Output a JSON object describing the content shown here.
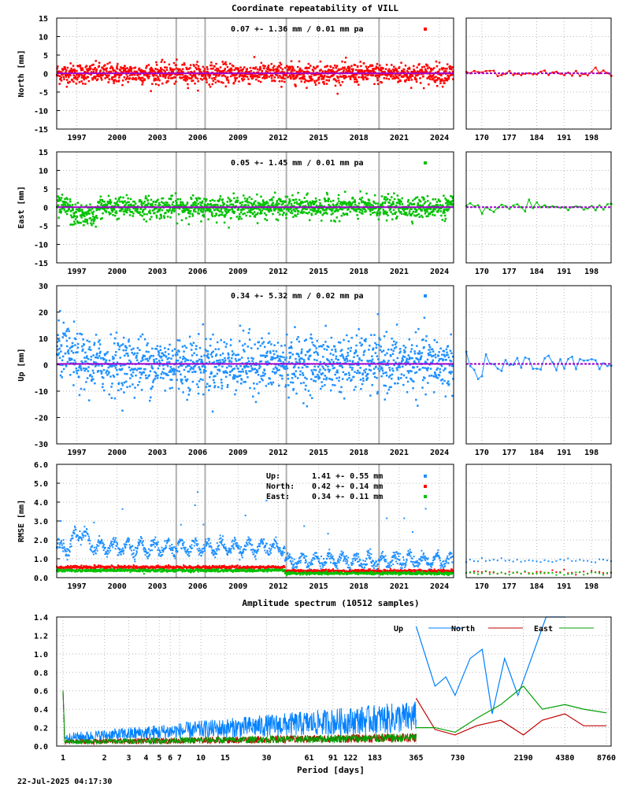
{
  "page": {
    "title": "Coordinate repeatability of VILL",
    "footer_timestamp": "22-Jul-2025 04:17:30"
  },
  "colors": {
    "north": "#ff0000",
    "east": "#00c000",
    "up": "#1e90ff",
    "fit_line": "#a000d0",
    "grid": "#b8b8b8",
    "offset_line": "#b0b0b0",
    "spectrum_up": "#0080ff",
    "spectrum_north": "#c00000",
    "spectrum_east": "#00a000"
  },
  "chart_data": [
    {
      "id": "north",
      "type": "scatter",
      "ylabel": "North [mm]",
      "ylim": [
        -15,
        15
      ],
      "yticks": [
        "15",
        "10",
        "5",
        "0",
        "-5",
        "-10",
        "-15"
      ],
      "xticks": [
        "1997",
        "2000",
        "2003",
        "2006",
        "2009",
        "2012",
        "2015",
        "2018",
        "2021",
        "2024"
      ],
      "xlim": [
        1996.0,
        2025.55
      ],
      "zoom_xticks": [
        "170",
        "177",
        "184",
        "191",
        "198"
      ],
      "zoom_xlim": [
        166,
        203
      ],
      "stat_text": "0.07 +- 1.36 mm /  0.01 mm pa",
      "mean": 0.07,
      "sigma": 1.36,
      "rate": 0.01,
      "offset_years": [
        2004.9,
        2007.05,
        2013.1,
        2020.0
      ],
      "grid": true
    },
    {
      "id": "east",
      "type": "scatter",
      "ylabel": "East [mm]",
      "ylim": [
        -15,
        15
      ],
      "yticks": [
        "15",
        "10",
        "5",
        "0",
        "-5",
        "-10",
        "-15"
      ],
      "xticks": [
        "1997",
        "2000",
        "2003",
        "2006",
        "2009",
        "2012",
        "2015",
        "2018",
        "2021",
        "2024"
      ],
      "xlim": [
        1996.0,
        2025.55
      ],
      "zoom_xticks": [
        "170",
        "177",
        "184",
        "191",
        "198"
      ],
      "zoom_xlim": [
        166,
        203
      ],
      "stat_text": "0.05 +- 1.45 mm /  0.01 mm pa",
      "mean": 0.05,
      "sigma": 1.45,
      "rate": 0.01,
      "offset_years": [
        2004.9,
        2007.05,
        2013.1,
        2020.0
      ],
      "grid": true
    },
    {
      "id": "up",
      "type": "scatter",
      "ylabel": "Up [mm]",
      "ylim": [
        -30,
        30
      ],
      "yticks": [
        "30",
        "20",
        "10",
        "0",
        "-10",
        "-20",
        "-30"
      ],
      "xticks": [
        "1997",
        "2000",
        "2003",
        "2006",
        "2009",
        "2012",
        "2015",
        "2018",
        "2021",
        "2024"
      ],
      "xlim": [
        1996.0,
        2025.55
      ],
      "zoom_xticks": [
        "170",
        "177",
        "184",
        "191",
        "198"
      ],
      "zoom_xlim": [
        166,
        203
      ],
      "stat_text": "0.34 +- 5.32 mm /  0.02 mm pa",
      "mean": 0.34,
      "sigma": 5.32,
      "rate": 0.02,
      "offset_years": [
        2004.9,
        2007.05,
        2013.1,
        2020.0
      ],
      "grid": true
    },
    {
      "id": "rmse",
      "type": "scatter",
      "ylabel": "RMSE [mm]",
      "ylim": [
        0,
        6
      ],
      "yticks": [
        "6.0",
        "5.0",
        "4.0",
        "3.0",
        "2.0",
        "1.0",
        "0.0"
      ],
      "xticks": [
        "1997",
        "2000",
        "2003",
        "2006",
        "2009",
        "2012",
        "2015",
        "2018",
        "2021",
        "2024"
      ],
      "xlim": [
        1996.0,
        2025.55
      ],
      "zoom_xticks": [
        "170",
        "177",
        "184",
        "191",
        "198"
      ],
      "zoom_xlim": [
        166,
        203
      ],
      "legend": [
        {
          "name": "Up:",
          "text": "1.41 +- 0.55 mm",
          "mean": 1.41,
          "sigma": 0.55
        },
        {
          "name": "North:",
          "text": "0.42 +- 0.14 mm",
          "mean": 0.42,
          "sigma": 0.14
        },
        {
          "name": "East:",
          "text": "0.34 +- 0.11 mm",
          "mean": 0.34,
          "sigma": 0.11
        }
      ],
      "offset_years": [
        2004.9,
        2007.05,
        2013.1,
        2020.0
      ],
      "grid": true
    },
    {
      "id": "spectrum",
      "type": "line",
      "title": "Amplitude spectrum (10512 samples)",
      "xlabel": "Period [days]",
      "x_scale": "log",
      "xlim": [
        1,
        8760
      ],
      "ylim": [
        0,
        1.4
      ],
      "yticks": [
        "1.4",
        "1.2",
        "1.0",
        "0.8",
        "0.6",
        "0.4",
        "0.2",
        "0.0"
      ],
      "xticks": [
        "1",
        "2",
        "3",
        "4",
        "5",
        "6",
        "7",
        "10",
        "15",
        "30",
        "61",
        "91",
        "122",
        "183",
        "365",
        "730",
        "2190",
        "4380",
        "8760"
      ],
      "xtick_values": [
        1,
        2,
        3,
        4,
        5,
        6,
        7,
        10,
        15,
        30,
        61,
        91,
        122,
        183,
        365,
        730,
        2190,
        4380,
        8760
      ],
      "series": [
        {
          "name": "Up",
          "x": [
            365,
            500,
            600,
            700,
            900,
            1100,
            1300,
            1600,
            2000,
            2500,
            3200,
            4380
          ],
          "y": [
            1.3,
            0.65,
            0.75,
            0.55,
            0.95,
            1.05,
            0.35,
            0.95,
            0.55,
            0.95,
            1.4,
            1.4
          ]
        },
        {
          "name": "North",
          "x": [
            365,
            500,
            700,
            1000,
            1500,
            2190,
            3000,
            4380,
            6000,
            8760
          ],
          "y": [
            0.52,
            0.18,
            0.12,
            0.22,
            0.28,
            0.12,
            0.28,
            0.35,
            0.22,
            0.22
          ]
        },
        {
          "name": "East",
          "x": [
            365,
            500,
            700,
            1000,
            1500,
            2190,
            3000,
            4380,
            6000,
            8760
          ],
          "y": [
            0.2,
            0.2,
            0.15,
            0.3,
            0.45,
            0.65,
            0.4,
            0.45,
            0.4,
            0.36
          ]
        }
      ],
      "legend_position": "top-right",
      "grid": true
    }
  ]
}
